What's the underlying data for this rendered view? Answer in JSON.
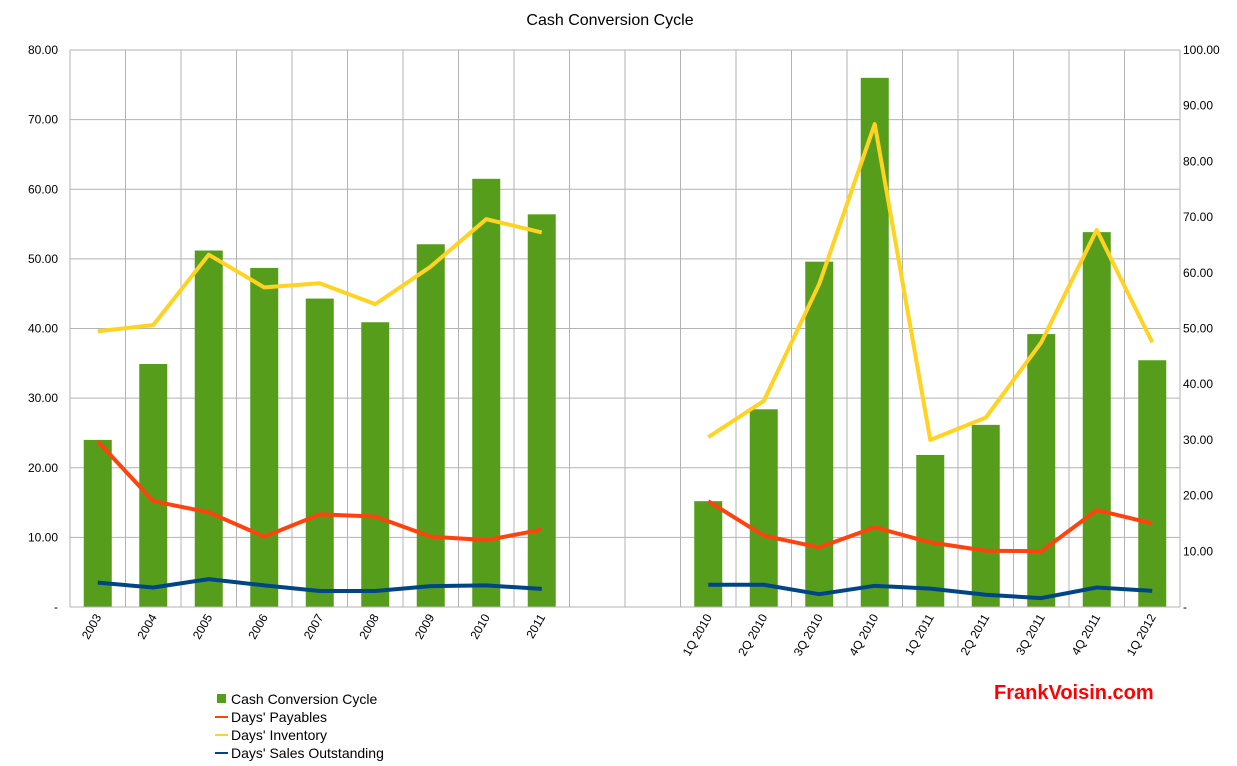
{
  "chart_data": {
    "type": "bar",
    "title": "Cash Conversion Cycle",
    "categories": [
      "2003",
      "2004",
      "2005",
      "2006",
      "2007",
      "2008",
      "2009",
      "2010",
      "2011",
      "",
      "",
      "1Q 2010",
      "2Q 2010",
      "3Q 2010",
      "4Q 2010",
      "1Q 2011",
      "2Q 2011",
      "3Q 2011",
      "4Q 2011",
      "1Q 2012"
    ],
    "y_left": {
      "ylim": [
        0,
        80
      ],
      "ticks": [
        "-",
        "10.00",
        "20.00",
        "30.00",
        "40.00",
        "50.00",
        "60.00",
        "70.00",
        "80.00"
      ]
    },
    "y_right": {
      "ylim": [
        0,
        100
      ],
      "ticks": [
        "-",
        "10.00",
        "20.00",
        "30.00",
        "40.00",
        "50.00",
        "60.00",
        "70.00",
        "80.00",
        "90.00",
        "100.00"
      ]
    },
    "grid": true,
    "legend": "bottom-left",
    "series": [
      {
        "name": "Cash Conversion Cycle",
        "kind": "bar",
        "color": "#579d1c",
        "annual_left_axis": [
          24.0,
          34.9,
          51.2,
          48.7,
          44.3,
          40.9,
          52.1,
          61.5,
          56.4
        ],
        "quarterly_right_axis": [
          19.0,
          35.5,
          62.0,
          95.0,
          27.3,
          32.7,
          49.0,
          67.3,
          44.3
        ]
      },
      {
        "name": "Days' Payables",
        "kind": "line",
        "color": "#ff420e",
        "annual_left_axis": [
          23.8,
          15.2,
          13.6,
          10.1,
          13.3,
          13.0,
          10.1,
          9.6,
          11.1
        ],
        "quarterly_right_axis": [
          19.0,
          12.8,
          10.7,
          14.3,
          11.6,
          10.1,
          10.0,
          17.4,
          15.0
        ]
      },
      {
        "name": "Days' Inventory",
        "kind": "line",
        "color": "#ffd320",
        "annual_left_axis": [
          39.6,
          40.5,
          50.6,
          45.9,
          46.5,
          43.5,
          48.9,
          55.7,
          53.8
        ],
        "quarterly_right_axis": [
          30.5,
          37.0,
          58.0,
          86.7,
          30.0,
          34.0,
          47.5,
          67.7,
          47.5
        ]
      },
      {
        "name": "Days' Sales Outstanding",
        "kind": "line",
        "color": "#004586",
        "annual_left_axis": [
          3.5,
          2.8,
          4.0,
          3.1,
          2.3,
          2.3,
          3.0,
          3.1,
          2.6
        ],
        "quarterly_right_axis": [
          4.0,
          4.0,
          2.3,
          3.8,
          3.3,
          2.2,
          1.6,
          3.5,
          2.9
        ]
      }
    ]
  },
  "legend": {
    "items": [
      {
        "label": "Cash Conversion Cycle",
        "color": "#579d1c",
        "swatch": "square"
      },
      {
        "label": "Days' Payables",
        "color": "#ff420e",
        "swatch": "line"
      },
      {
        "label": "Days' Inventory",
        "color": "#ffd320",
        "swatch": "line"
      },
      {
        "label": "Days' Sales Outstanding",
        "color": "#004586",
        "swatch": "line"
      }
    ]
  },
  "watermark": {
    "text": "FrankVoisin.com",
    "color": "#ff0000"
  }
}
